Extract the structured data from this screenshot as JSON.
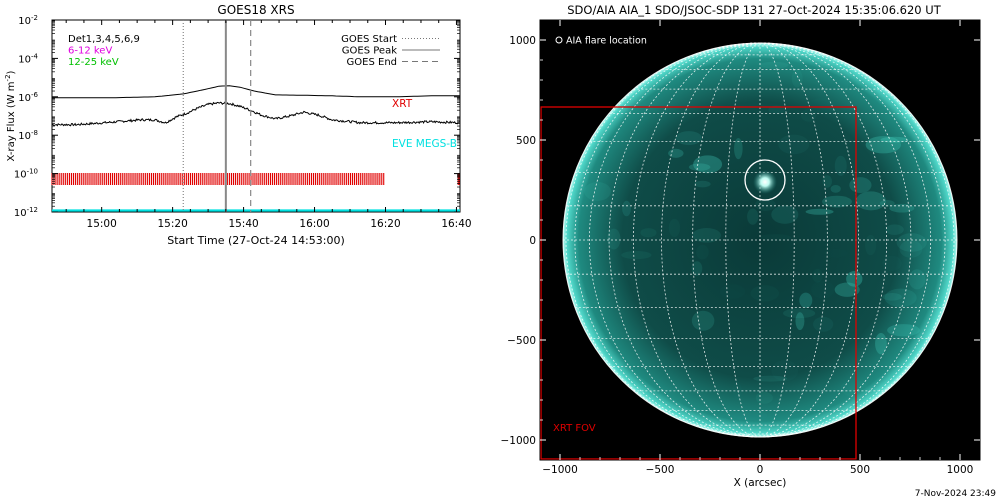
{
  "chart_data": [
    {
      "type": "line",
      "title": "GOES18 XRS",
      "xlabel": "Start Time (27-Oct-24 14:53:00)",
      "ylabel": "X-ray Flux (W m",
      "ylabel_sup": "-2",
      "ylabel_end": ")",
      "xlim": [
        -7,
        108
      ],
      "x_ticks": [
        {
          "x": 7,
          "label": "15:00"
        },
        {
          "x": 27,
          "label": "15:20"
        },
        {
          "x": 47,
          "label": "15:40"
        },
        {
          "x": 67,
          "label": "16:00"
        },
        {
          "x": 87,
          "label": "16:20"
        },
        {
          "x": 107,
          "label": "16:40"
        }
      ],
      "y_log": true,
      "ylim_exp": [
        -12,
        -2
      ],
      "y_ticks": [
        {
          "exp": -2,
          "base": "10",
          "sup": "-2"
        },
        {
          "exp": -4,
          "base": "10",
          "sup": "-4"
        },
        {
          "exp": -6,
          "base": "10",
          "sup": "-6"
        },
        {
          "exp": -8,
          "base": "10",
          "sup": "-8"
        },
        {
          "exp": -10,
          "base": "10",
          "sup": "-10"
        },
        {
          "exp": -12,
          "base": "10",
          "sup": "-12"
        }
      ],
      "legend_left": [
        {
          "text": "Det1,3,4,5,6,9",
          "color": "#000000"
        },
        {
          "text": "6-12 keV",
          "color": "#e000e0"
        },
        {
          "text": "12-25 keV",
          "color": "#00c000"
        }
      ],
      "legend_right": [
        {
          "text": "GOES Start",
          "style": "dotted"
        },
        {
          "text": "GOES Peak",
          "style": "solid"
        },
        {
          "text": "GOES End",
          "style": "dashed"
        }
      ],
      "markers": {
        "start": 30,
        "peak": 42,
        "end": 49
      },
      "series": [
        {
          "color": "#000000",
          "x": [
            -7,
            10,
            22,
            30,
            36,
            40,
            43,
            46,
            50,
            56,
            64,
            72,
            80,
            90,
            100,
            108
          ],
          "y_exp": [
            -6.05,
            -6.05,
            -6.0,
            -5.85,
            -5.62,
            -5.45,
            -5.42,
            -5.5,
            -5.7,
            -5.9,
            -5.92,
            -5.95,
            -6.0,
            -6.0,
            -5.95,
            -5.95
          ]
        },
        {
          "color": "#000000",
          "noise": true,
          "x": [
            -7,
            0,
            10,
            18,
            22,
            25,
            28,
            31,
            34,
            37,
            40,
            43,
            46,
            49,
            52,
            56,
            60,
            64,
            68,
            72,
            80,
            90,
            100,
            108
          ],
          "y_exp": [
            -7.45,
            -7.45,
            -7.32,
            -7.2,
            -7.2,
            -7.35,
            -7.05,
            -6.85,
            -6.6,
            -6.4,
            -6.32,
            -6.35,
            -6.5,
            -6.7,
            -6.95,
            -7.15,
            -7.0,
            -6.8,
            -6.95,
            -7.2,
            -7.35,
            -7.35,
            -7.3,
            -7.35
          ]
        }
      ],
      "annotations": [
        {
          "text": "XRT",
          "color": "#e00000"
        },
        {
          "text": "EVE MEGS-B",
          "color": "#00e0e0"
        }
      ],
      "xrt_band": {
        "color": "#e00000",
        "start": -7,
        "end": 87,
        "resume": 107.5
      },
      "eve_line": {
        "color": "#00e0e0",
        "y_exp": -12
      }
    },
    {
      "type": "heatmap",
      "title": "SDO/AIA AIA_1 SDO/JSOC-SDP 131 27-Oct-2024 15:35:06.620 UT",
      "xlabel": "X (arcsec)",
      "xlim": [
        -1100,
        1100
      ],
      "ylim": [
        -1100,
        1100
      ],
      "x_ticks": [
        -1000,
        -500,
        0,
        500,
        1000
      ],
      "y_ticks": [
        1000,
        500,
        0,
        -500,
        -1000
      ],
      "x_tick_labels": [
        "−1000",
        "−500",
        "0",
        "500",
        "1000"
      ],
      "y_tick_labels": [
        "1000",
        "500",
        "0",
        "−500",
        "−1000"
      ],
      "legend": "AIA flare location",
      "flare": {
        "x": 25,
        "y": 300,
        "r": 100
      },
      "sun_radius": 985,
      "xrt_fov": {
        "label": "XRT FOV",
        "x0": -1100,
        "x1": 480,
        "y0": 665,
        "y1": -1100,
        "color": "#e00000"
      },
      "footer": "7-Nov-2024 23:49"
    }
  ]
}
